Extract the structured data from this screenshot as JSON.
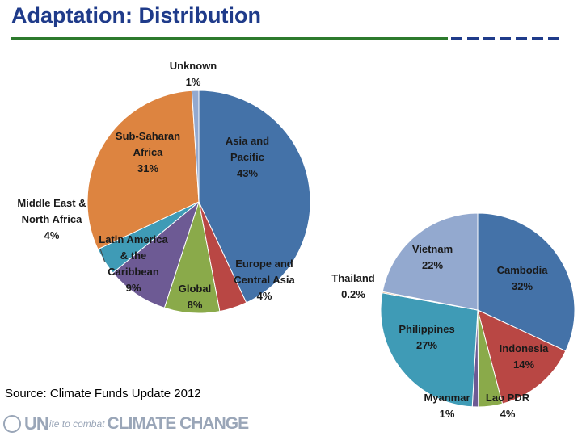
{
  "header": {
    "title": "Adaptation: Distribution"
  },
  "footer": {
    "source": "Source: Climate Funds Update 2012",
    "logo_un": "UN",
    "logo_mid": "ite to combat",
    "logo_cc": "CLIMATE CHANGE"
  },
  "chart_data": [
    {
      "type": "pie",
      "title": "",
      "slices": [
        {
          "lines": [
            "Asia and",
            "Pacific",
            "43%"
          ],
          "value": 43,
          "color": "#4472a8"
        },
        {
          "lines": [
            "Europe and",
            "Central Asia",
            "4%"
          ],
          "value": 4,
          "color": "#b94744"
        },
        {
          "lines": [
            "Global",
            "8%"
          ],
          "value": 8,
          "color": "#8aaa4a"
        },
        {
          "lines": [
            "Latin America",
            "& the",
            "Caribbean",
            "9%"
          ],
          "value": 9,
          "color": "#6d5a94"
        },
        {
          "lines": [
            "Middle East &",
            "North Africa",
            "4%"
          ],
          "value": 4,
          "color": "#3f9bb6"
        },
        {
          "lines": [
            "Sub-Saharan",
            "Africa",
            "31%"
          ],
          "value": 31,
          "color": "#dd8440"
        },
        {
          "lines": [
            "Unknown",
            "1%"
          ],
          "value": 1,
          "color": "#93a9cf"
        }
      ]
    },
    {
      "type": "pie",
      "title": "",
      "slices": [
        {
          "lines": [
            "Cambodia",
            "32%"
          ],
          "value": 32,
          "color": "#4472a8"
        },
        {
          "lines": [
            "Indonesia",
            "14%"
          ],
          "value": 14,
          "color": "#b94744"
        },
        {
          "lines": [
            "Lao PDR",
            "4%"
          ],
          "value": 4,
          "color": "#8aaa4a"
        },
        {
          "lines": [
            "Myanmar",
            "1%"
          ],
          "value": 1,
          "color": "#6d5a94"
        },
        {
          "lines": [
            "Philippines",
            "27%"
          ],
          "value": 27,
          "color": "#3f9bb6"
        },
        {
          "lines": [
            "Thailand",
            "0.2%"
          ],
          "value": 0.2,
          "color": "#dd8440"
        },
        {
          "lines": [
            "Vietnam",
            "22%"
          ],
          "value": 22,
          "color": "#93a9cf"
        }
      ]
    }
  ]
}
